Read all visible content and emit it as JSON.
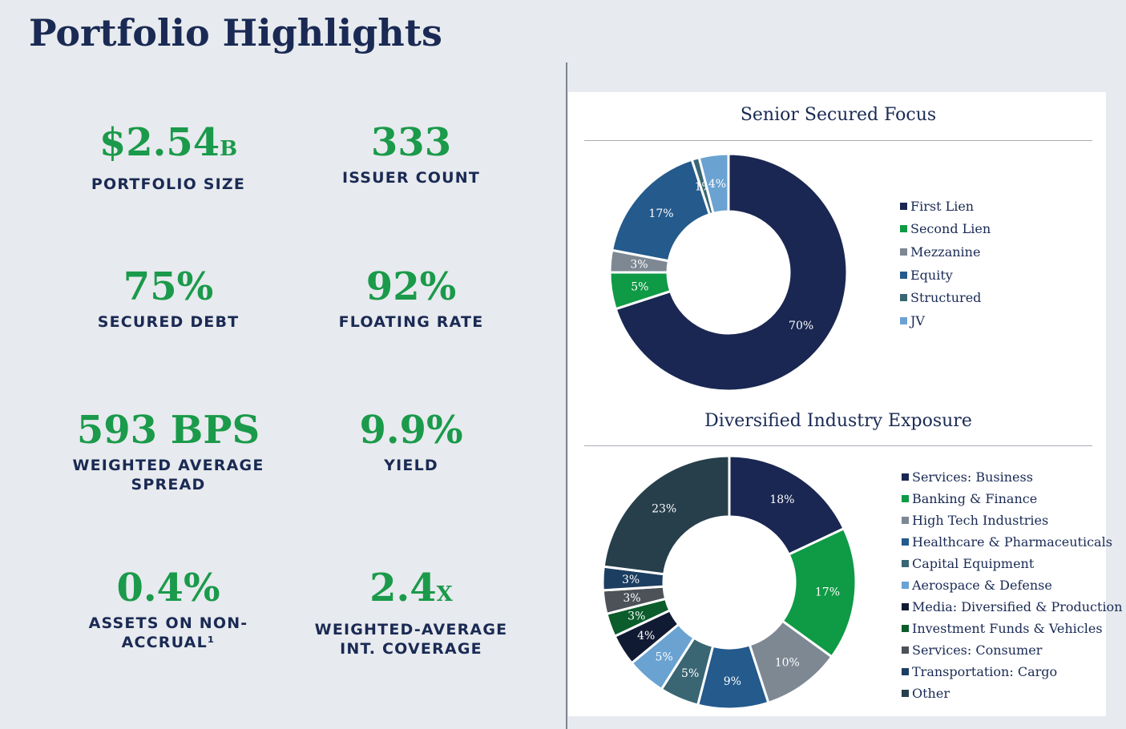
{
  "page": {
    "title": "Portfolio Highlights"
  },
  "metrics": [
    {
      "value": "$2.54",
      "suffix": "B",
      "label": "PORTFOLIO SIZE"
    },
    {
      "value": "333",
      "suffix": "",
      "label": "ISSUER COUNT"
    },
    {
      "value": "75%",
      "suffix": "",
      "label": "SECURED DEBT"
    },
    {
      "value": "92%",
      "suffix": "",
      "label": "FLOATING RATE"
    },
    {
      "value": "593 BPS",
      "suffix": "",
      "label": "WEIGHTED AVERAGE\nSPREAD"
    },
    {
      "value": "9.9%",
      "suffix": "",
      "label": "YIELD"
    },
    {
      "value": "0.4%",
      "suffix": "",
      "label": "ASSETS ON NON-\nACCRUAL¹"
    },
    {
      "value": "2.4",
      "suffix": "X",
      "label": "WEIGHTED-AVERAGE\nINT. COVERAGE"
    }
  ],
  "chart_data": [
    {
      "type": "pie",
      "title": "Senior Secured Focus",
      "categories": [
        "First Lien",
        "Second Lien",
        "Mezzanine",
        "Equity",
        "Structured",
        "JV"
      ],
      "values": [
        70,
        5,
        3,
        17,
        1,
        4
      ],
      "labels": [
        "70%",
        "5%",
        "3%",
        "17%",
        "1%",
        "4%"
      ],
      "colors": [
        "#1a2752",
        "#0f9a45",
        "#7d8893",
        "#245a8c",
        "#3a6673",
        "#6aa2d2"
      ],
      "legend_position": "right"
    },
    {
      "type": "pie",
      "title": "Diversified Industry Exposure",
      "categories": [
        "Services: Business",
        "Banking & Finance",
        "High Tech Industries",
        "Healthcare & Pharmaceuticals",
        "Capital Equipment",
        "Aerospace & Defense",
        "Media: Diversified & Production",
        "Investment Funds & Vehicles",
        "Services: Consumer",
        "Transportation: Cargo",
        "Other"
      ],
      "values": [
        18,
        17,
        10,
        9,
        5,
        5,
        4,
        3,
        3,
        3,
        23
      ],
      "labels": [
        "18%",
        "17%",
        "10%",
        "9%",
        "5%",
        "5%",
        "4%",
        "3%",
        "3%",
        "3%",
        "23%"
      ],
      "colors": [
        "#1a2752",
        "#0f9a45",
        "#7d8893",
        "#245a8c",
        "#3a6673",
        "#6aa2d2",
        "#111a33",
        "#0b5d2c",
        "#4c5258",
        "#1c3e61",
        "#263f4b"
      ],
      "legend_position": "right"
    }
  ]
}
